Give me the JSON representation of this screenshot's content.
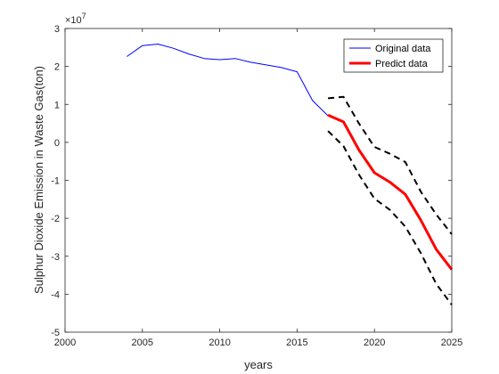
{
  "chart_data": {
    "type": "line",
    "xlabel": "years",
    "ylabel": "Sulphur Dioxide Emission in Waste Gas(ton)",
    "exponent_base": "×10",
    "exponent_power": "7",
    "xlim": [
      2000,
      2025
    ],
    "ylim": [
      -5,
      3
    ],
    "xticks": [
      2000,
      2005,
      2010,
      2015,
      2020,
      2025
    ],
    "yticks": [
      -5,
      -4,
      -3,
      -2,
      -1,
      0,
      1,
      2,
      3
    ],
    "legend_position": "top-right",
    "series": [
      {
        "name": "Original data",
        "color": "#0000ff",
        "style": "solid-thin",
        "x": [
          2004,
          2005,
          2006,
          2007,
          2008,
          2009,
          2010,
          2011,
          2012,
          2013,
          2014,
          2015,
          2016,
          2017
        ],
        "y": [
          2.26,
          2.55,
          2.59,
          2.48,
          2.33,
          2.21,
          2.18,
          2.21,
          2.11,
          2.04,
          1.97,
          1.86,
          1.1,
          0.7
        ]
      },
      {
        "name": "Predict data",
        "color": "#ff0000",
        "style": "solid-thick",
        "x": [
          2017,
          2018,
          2019,
          2020,
          2021,
          2022,
          2023,
          2024,
          2025
        ],
        "y": [
          0.72,
          0.54,
          -0.2,
          -0.8,
          -1.05,
          -1.37,
          -2.05,
          -2.82,
          -3.35
        ]
      },
      {
        "color": "#000000",
        "style": "dashed",
        "x": [
          2017,
          2018,
          2019,
          2020,
          2021,
          2022,
          2023,
          2024,
          2025
        ],
        "y": [
          1.16,
          1.2,
          0.5,
          -0.12,
          -0.3,
          -0.52,
          -1.3,
          -1.9,
          -2.42
        ]
      },
      {
        "color": "#000000",
        "style": "dashed",
        "x": [
          2017,
          2018,
          2019,
          2020,
          2021,
          2022,
          2023,
          2024,
          2025
        ],
        "y": [
          0.3,
          -0.1,
          -0.85,
          -1.48,
          -1.78,
          -2.22,
          -2.92,
          -3.73,
          -4.28
        ]
      }
    ]
  }
}
